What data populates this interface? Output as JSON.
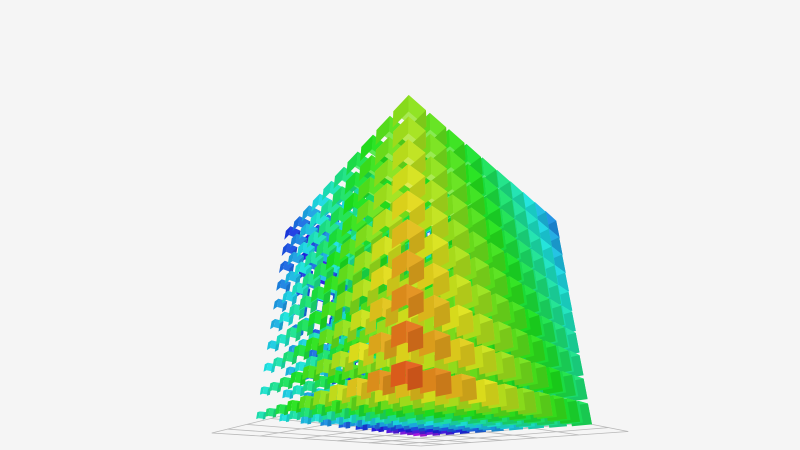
{
  "scene": {
    "background": "#f5f5f5",
    "grid_color": "#b8b8b8",
    "color_mode": "hue-gradient",
    "object": "3d-voxel-cube-lattice",
    "lattice_size": 10
  }
}
